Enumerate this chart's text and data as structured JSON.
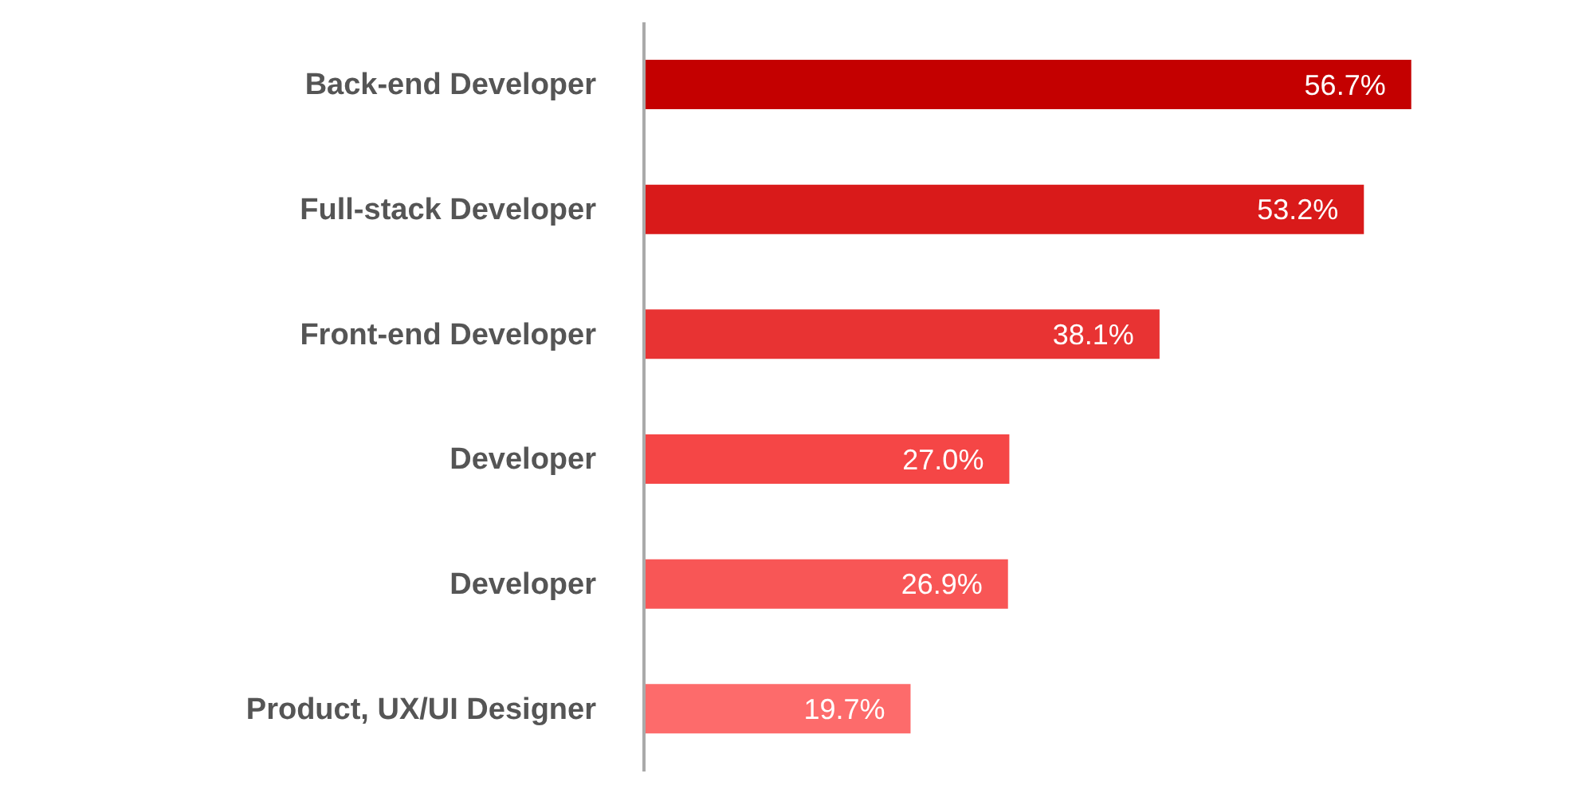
{
  "chart_data": {
    "type": "bar",
    "orientation": "horizontal",
    "categories": [
      "Back-end Developer",
      "Full-stack Developer",
      "Front-end Developer",
      "Developer",
      "Developer",
      "Product, UX/UI Designer"
    ],
    "values": [
      56.7,
      53.2,
      38.1,
      27.0,
      26.9,
      19.7
    ],
    "value_labels": [
      "56.7%",
      "53.2%",
      "38.1%",
      "27.0%",
      "26.9%",
      "19.7%"
    ],
    "colors": [
      "#c40000",
      "#d91a1a",
      "#e83333",
      "#f54646",
      "#f85656",
      "#fd6b6b"
    ],
    "grid": false,
    "legend": false
  }
}
